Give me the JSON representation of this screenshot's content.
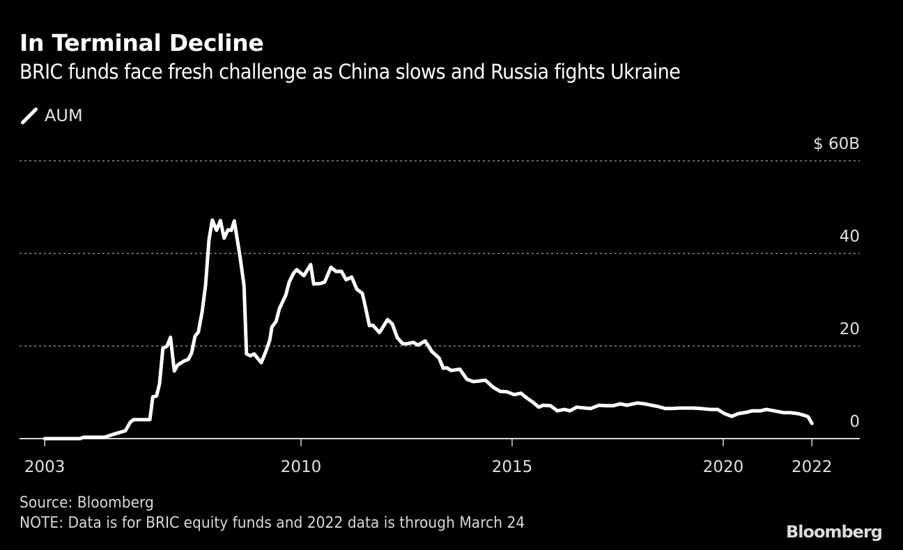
{
  "chart_data": {
    "type": "line",
    "title": "In Terminal Decline",
    "subtitle": "BRIC funds face fresh challenge as China slows and Russia fights Ukraine",
    "xlabel": "",
    "ylabel": "",
    "ylim": [
      0,
      60
    ],
    "grid": true,
    "legend_placement": "top-left",
    "y_ticks": [
      {
        "value": 60,
        "label": "$ 60B"
      },
      {
        "value": 40,
        "label": "40"
      },
      {
        "value": 20,
        "label": "20"
      },
      {
        "value": 0,
        "label": "0"
      }
    ],
    "x_ticks": [
      {
        "value": 2003.93,
        "label": "2003"
      },
      {
        "value": 2010,
        "label": "2010"
      },
      {
        "value": 2015,
        "label": "2015"
      },
      {
        "value": 2020,
        "label": "2020"
      },
      {
        "value": 2022.1,
        "label": "2022"
      }
    ],
    "series": [
      {
        "name": "AUM",
        "color": "#ffffff",
        "x": [
          2003.93,
          2004.77,
          2004.85,
          2005.35,
          2005.51,
          2005.84,
          2005.96,
          2006.04,
          2006.42,
          2006.49,
          2006.58,
          2006.65,
          2006.73,
          2006.83,
          2006.91,
          2007.0,
          2007.08,
          2007.24,
          2007.33,
          2007.41,
          2007.49,
          2007.57,
          2007.66,
          2007.74,
          2007.82,
          2007.9,
          2008.0,
          2008.09,
          2008.18,
          2008.27,
          2008.35,
          2008.42,
          2008.48,
          2008.56,
          2008.65,
          2008.71,
          2008.8,
          2008.89,
          2009.06,
          2009.17,
          2009.26,
          2009.31,
          2009.41,
          2009.49,
          2009.64,
          2009.72,
          2009.83,
          2009.9,
          2010.07,
          2010.23,
          2010.3,
          2010.46,
          2010.56,
          2010.71,
          2010.83,
          2010.96,
          2011.07,
          2011.2,
          2011.32,
          2011.45,
          2011.5,
          2011.62,
          2011.7,
          2011.86,
          2012.05,
          2012.16,
          2012.28,
          2012.41,
          2012.52,
          2012.66,
          2012.77,
          2012.94,
          2013.1,
          2013.27,
          2013.37,
          2013.45,
          2013.56,
          2013.76,
          2013.93,
          2014.09,
          2014.26,
          2014.37,
          2014.55,
          2014.72,
          2014.88,
          2015.05,
          2015.21,
          2015.33,
          2015.5,
          2015.63,
          2015.74,
          2015.91,
          2016.07,
          2016.24,
          2016.37,
          2016.53,
          2016.73,
          2016.86,
          2017.06,
          2017.23,
          2017.39,
          2017.56,
          2017.72,
          2017.97,
          2018.14,
          2018.3,
          2018.47,
          2018.63,
          2018.8,
          2018.96,
          2019.13,
          2019.29,
          2019.46,
          2019.7,
          2019.87,
          2020.03,
          2020.2,
          2020.36,
          2020.56,
          2020.69,
          2020.89,
          2021.02,
          2021.27,
          2021.44,
          2021.6,
          2021.77,
          2021.93,
          2022.01,
          2022.1
        ],
        "values": [
          0,
          0,
          0.3,
          0.3,
          0.8,
          1.7,
          3.6,
          4.1,
          4.1,
          9.0,
          9.2,
          11.9,
          19.5,
          20.0,
          21.9,
          14.6,
          15.9,
          16.8,
          17.1,
          18.5,
          22.1,
          23.0,
          27.5,
          33.1,
          42.9,
          47.2,
          45.0,
          47.1,
          43.3,
          45.1,
          45.0,
          47.0,
          43.6,
          39.1,
          33.1,
          18.3,
          17.9,
          18.3,
          16.4,
          18.9,
          21.3,
          24.1,
          25.3,
          28.1,
          31.0,
          33.8,
          35.8,
          36.5,
          35.2,
          37.6,
          33.4,
          33.5,
          33.8,
          37.0,
          36.1,
          36.1,
          34.3,
          34.9,
          32.3,
          31.4,
          29.5,
          24.4,
          24.5,
          22.9,
          25.7,
          24.8,
          21.8,
          20.5,
          20.5,
          20.8,
          20.2,
          21.1,
          18.8,
          17.4,
          15.2,
          15.3,
          14.7,
          15.0,
          12.8,
          12.3,
          12.5,
          12.6,
          11.1,
          10.2,
          10.1,
          9.5,
          9.8,
          8.9,
          7.8,
          6.8,
          7.2,
          7.1,
          6.0,
          6.3,
          6.0,
          6.8,
          6.6,
          6.5,
          7.2,
          7.1,
          7.1,
          7.5,
          7.2,
          7.7,
          7.5,
          7.2,
          6.9,
          6.5,
          6.5,
          6.6,
          6.6,
          6.6,
          6.5,
          6.3,
          6.3,
          5.4,
          4.8,
          5.4,
          5.7,
          6.0,
          6.0,
          6.3,
          5.9,
          5.6,
          5.6,
          5.4,
          5.0,
          4.7,
          3.3
        ]
      }
    ]
  },
  "footer": {
    "source": "Source: Bloomberg",
    "note": "NOTE: Data is for BRIC equity funds and 2022 data is through March 24",
    "logo": "Bloomberg"
  }
}
